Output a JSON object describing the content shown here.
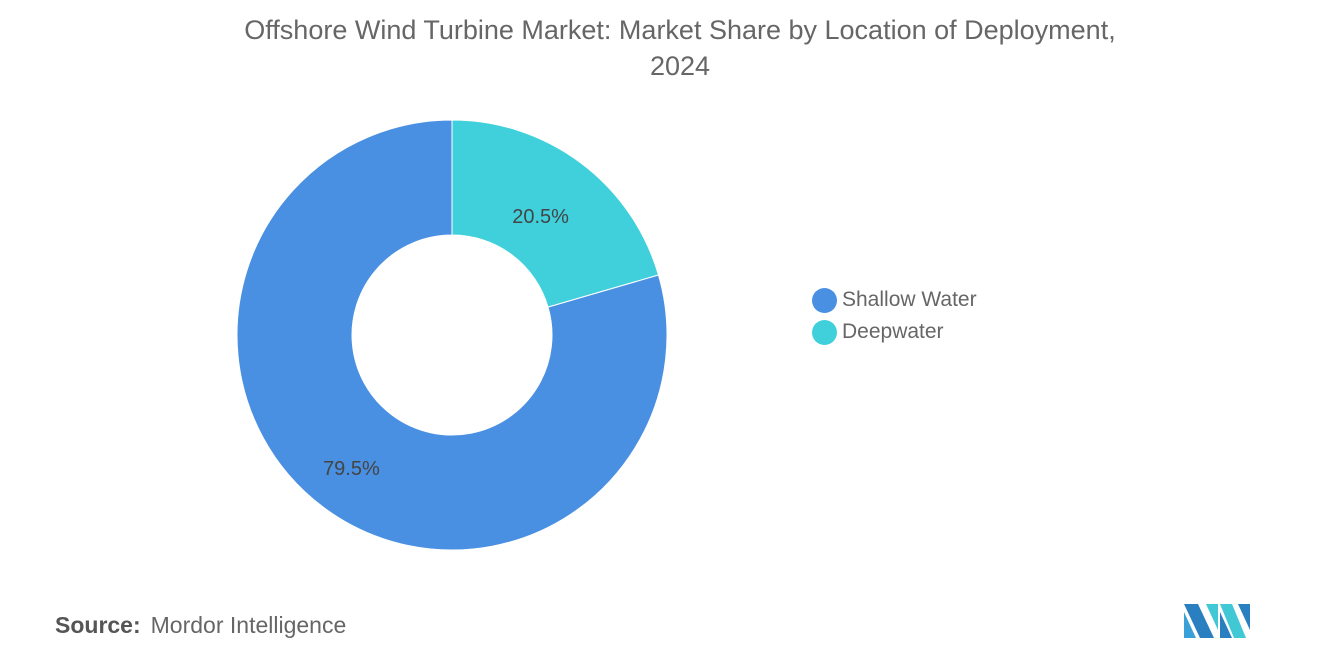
{
  "chart_data": {
    "type": "pie",
    "variant": "donut",
    "title": "Offshore Wind Turbine Market: Market Share by Location of Deployment, 2024",
    "title_lines": [
      "Offshore Wind Turbine Market: Market Share by Location of Deployment,",
      "2024"
    ],
    "categories": [
      "Deepwater",
      "Shallow Water"
    ],
    "values": [
      20.5,
      79.5
    ],
    "labels": [
      "20.5%",
      "79.5%"
    ],
    "colors": [
      "#40d0dc",
      "#4a90e2"
    ],
    "legend": [
      {
        "label": "Shallow Water",
        "color": "#4a90e2"
      },
      {
        "label": "Deepwater",
        "color": "#40d0dc"
      }
    ],
    "legend_position": "right"
  },
  "source": {
    "label": "Source:",
    "value": "Mordor Intelligence"
  },
  "logo": {
    "name": "mordor-intelligence-logo",
    "text": "MI"
  }
}
